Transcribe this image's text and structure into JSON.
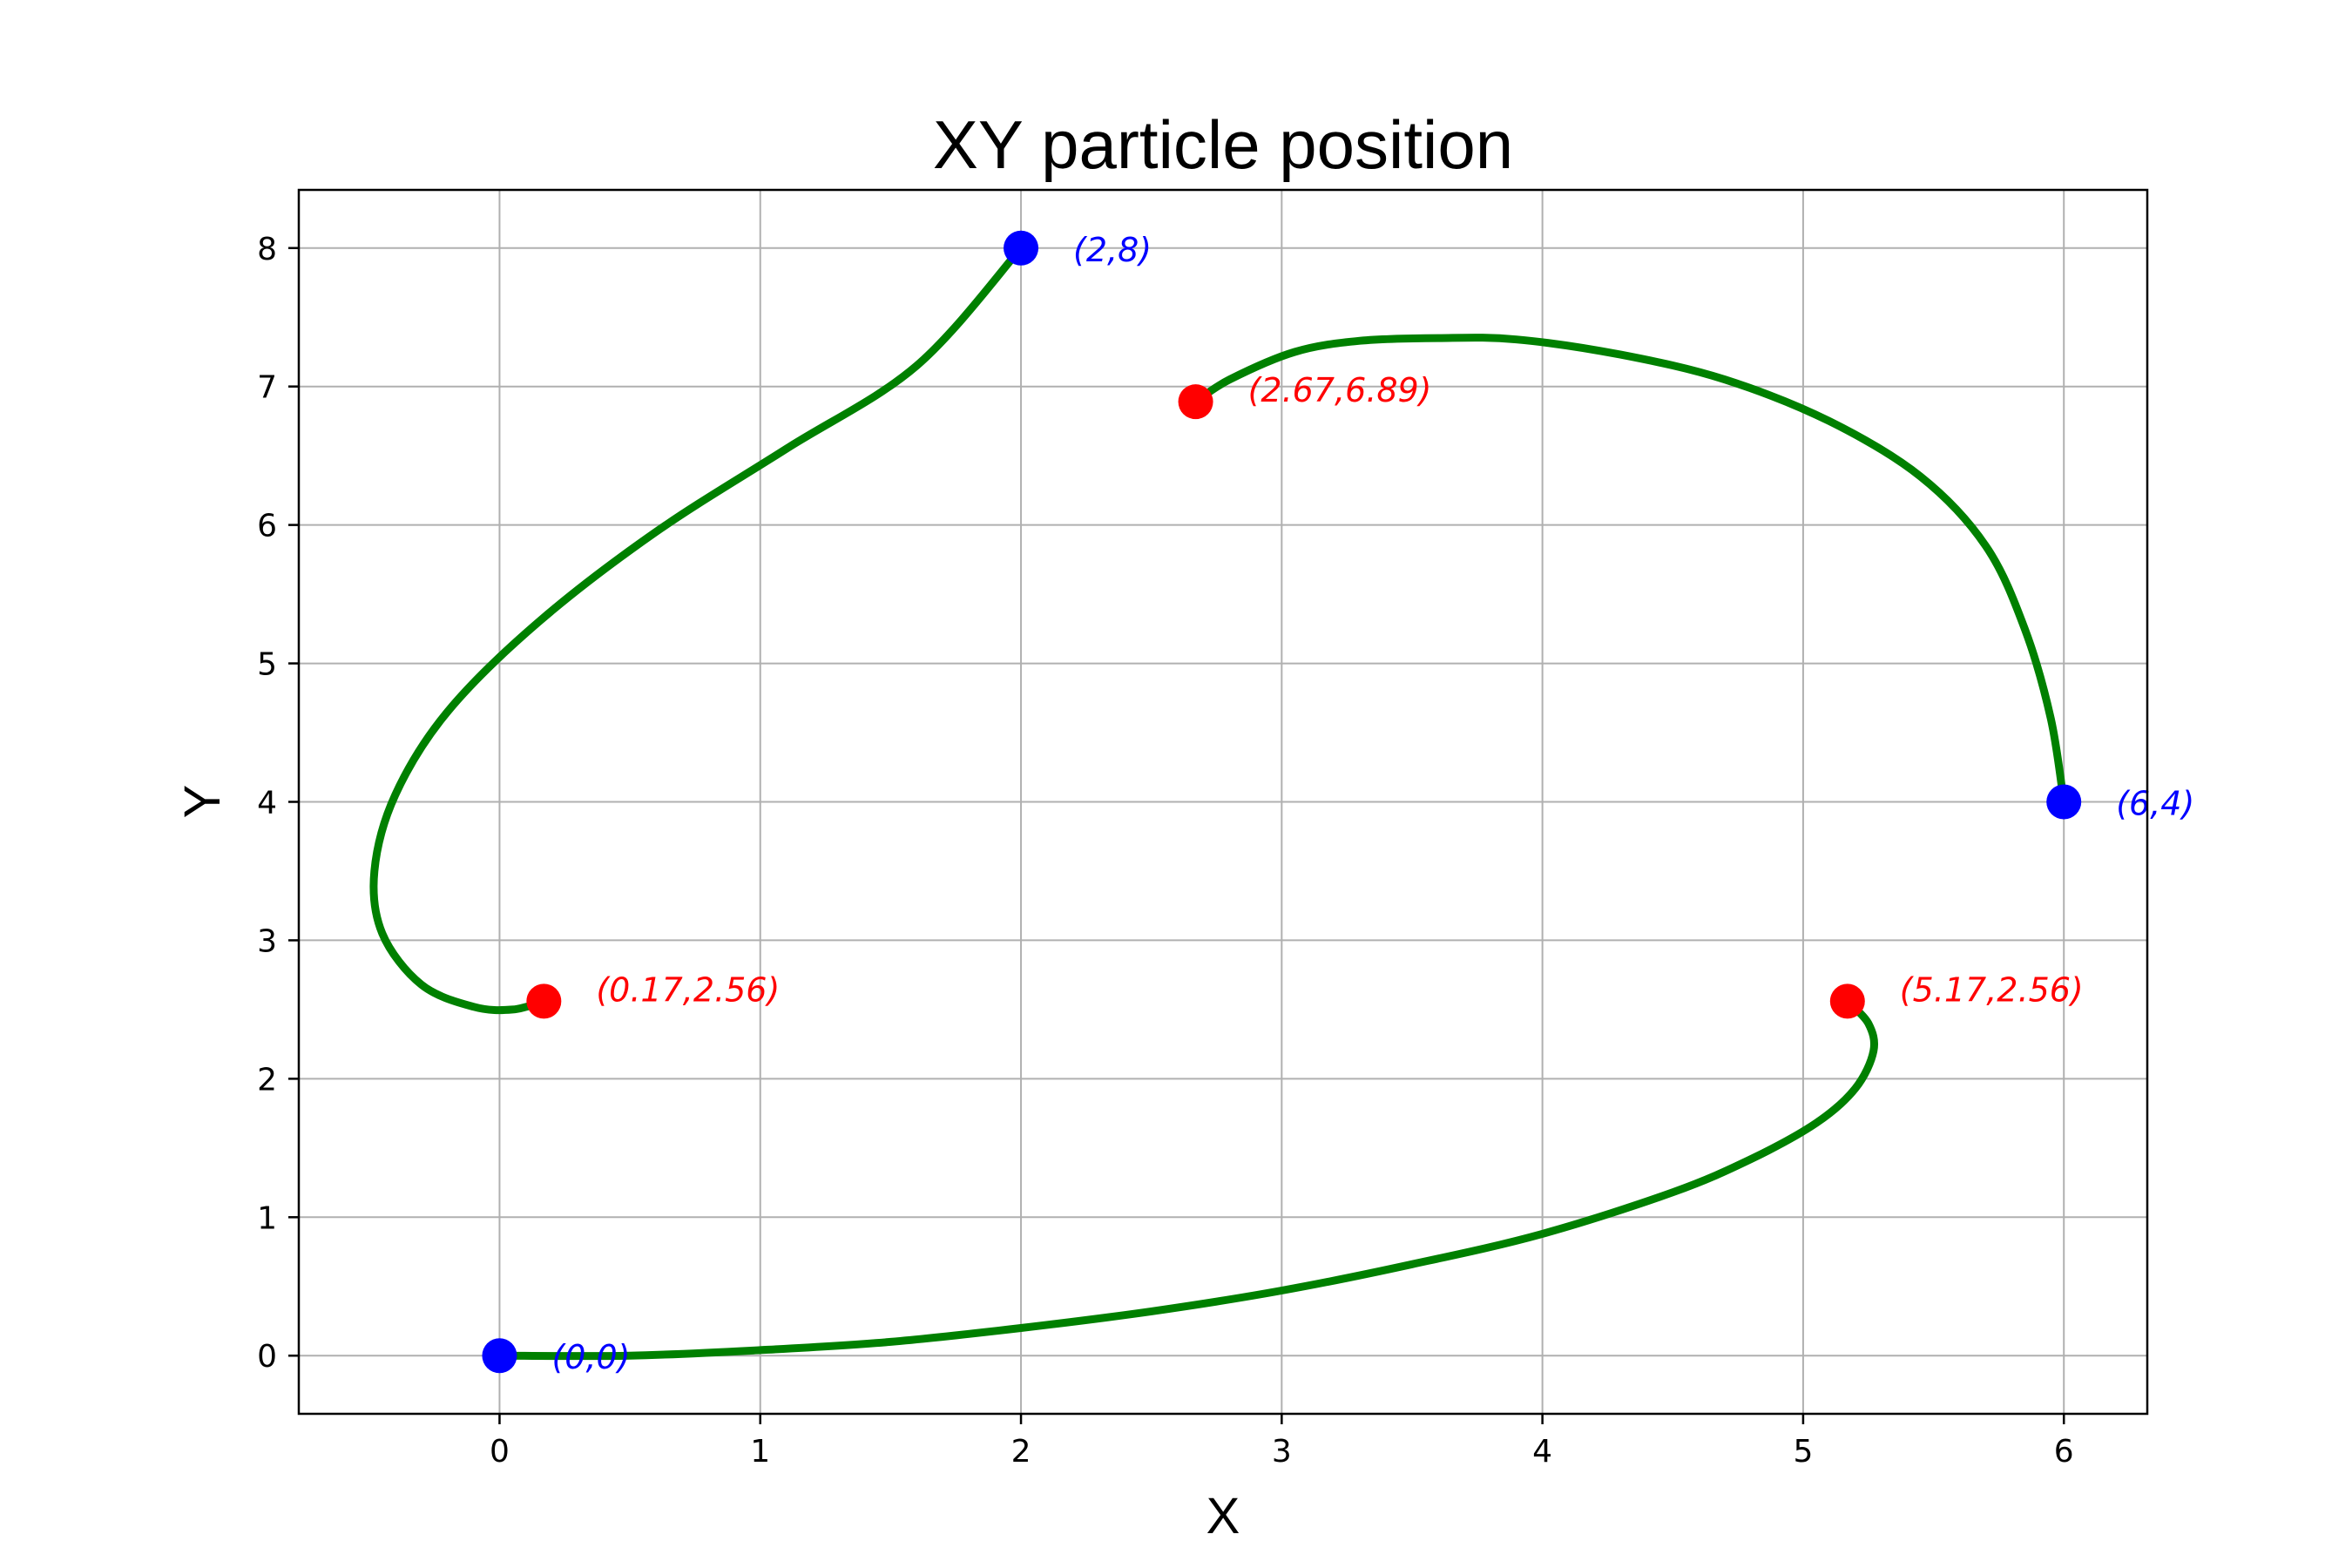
{
  "chart_data": {
    "type": "line",
    "title": "XY particle position",
    "xlabel": "X",
    "ylabel": "Y",
    "xlim": [
      -0.77,
      6.32
    ],
    "ylim": [
      -0.42,
      8.42
    ],
    "xticks": [
      "0",
      "1",
      "2",
      "3",
      "4",
      "5",
      "6"
    ],
    "yticks": [
      "0",
      "1",
      "2",
      "3",
      "4",
      "5",
      "6",
      "7",
      "8"
    ],
    "grid": true,
    "colors": {
      "trajectory": "#008000",
      "waypoint": "#0000ff",
      "extremum": "#ff0000",
      "grid": "#b0b0b0"
    },
    "trajectory_segments": [
      {
        "points": [
          [
            0,
            0
          ],
          [
            0.5,
            0.0
          ],
          [
            1,
            0.04
          ],
          [
            1.5,
            0.1
          ],
          [
            2,
            0.2
          ],
          [
            2.5,
            0.32
          ],
          [
            3,
            0.47
          ],
          [
            3.5,
            0.66
          ],
          [
            4,
            0.88
          ],
          [
            4.5,
            1.18
          ],
          [
            4.8,
            1.42
          ],
          [
            5.05,
            1.68
          ],
          [
            5.2,
            1.93
          ],
          [
            5.27,
            2.2
          ],
          [
            5.25,
            2.4
          ],
          [
            5.17,
            2.56
          ]
        ]
      },
      {
        "points": [
          [
            0.17,
            2.56
          ],
          [
            0.05,
            2.5
          ],
          [
            -0.1,
            2.52
          ],
          [
            -0.3,
            2.68
          ],
          [
            -0.45,
            3.05
          ],
          [
            -0.48,
            3.5
          ],
          [
            -0.4,
            4.05
          ],
          [
            -0.2,
            4.65
          ],
          [
            0.15,
            5.3
          ],
          [
            0.6,
            5.95
          ],
          [
            1.1,
            6.55
          ],
          [
            1.6,
            7.15
          ],
          [
            2,
            8
          ]
        ]
      },
      {
        "points": [
          [
            2.67,
            6.89
          ],
          [
            2.8,
            7.05
          ],
          [
            3.05,
            7.25
          ],
          [
            3.3,
            7.33
          ],
          [
            3.6,
            7.35
          ],
          [
            3.9,
            7.34
          ],
          [
            4.3,
            7.23
          ],
          [
            4.7,
            7.05
          ],
          [
            5.1,
            6.75
          ],
          [
            5.45,
            6.35
          ],
          [
            5.7,
            5.85
          ],
          [
            5.85,
            5.25
          ],
          [
            5.95,
            4.6
          ],
          [
            6,
            4
          ]
        ]
      }
    ],
    "waypoints": [
      {
        "x": 0,
        "y": 0,
        "label": "(0,0)"
      },
      {
        "x": 2,
        "y": 8,
        "label": "(2,8)"
      },
      {
        "x": 6,
        "y": 4,
        "label": "(6,4)"
      }
    ],
    "extrema": [
      {
        "x": 0.17,
        "y": 2.56,
        "label": "(0.17,2.56)"
      },
      {
        "x": 5.17,
        "y": 2.56,
        "label": "(5.17,2.56)"
      },
      {
        "x": 2.67,
        "y": 6.89,
        "label": "(2.67,6.89)"
      }
    ]
  }
}
